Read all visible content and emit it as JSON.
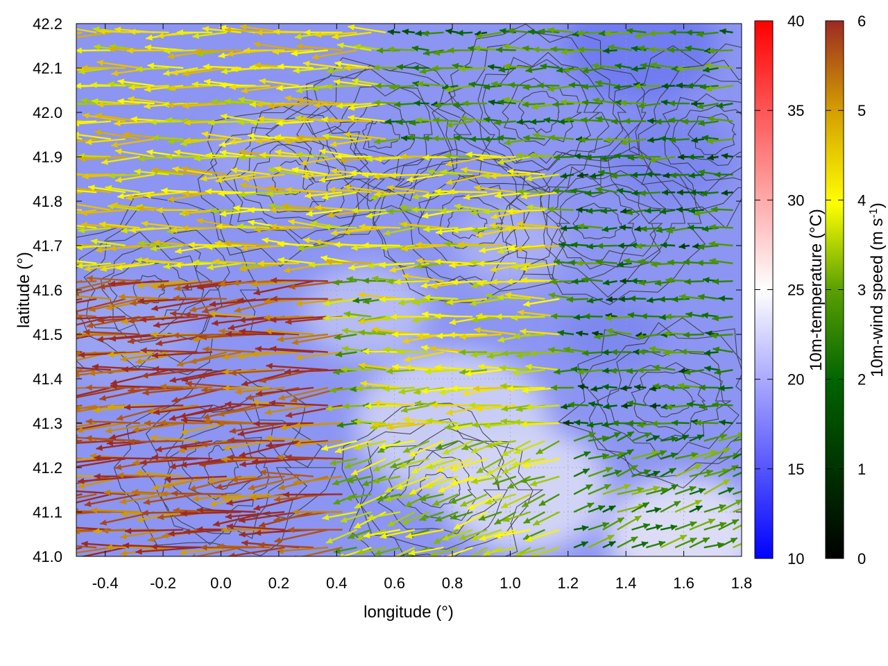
{
  "chart_data": {
    "type": "heatmap",
    "title": "",
    "xlabel": "longitude (°)",
    "ylabel": "latitude (°)",
    "xlim": [
      -0.5,
      1.8
    ],
    "ylim": [
      41.0,
      42.2
    ],
    "xticks": [
      {
        "value": -0.4,
        "label": "-0.4"
      },
      {
        "value": -0.2,
        "label": "-0.2"
      },
      {
        "value": 0.0,
        "label": "0.0"
      },
      {
        "value": 0.2,
        "label": "0.2"
      },
      {
        "value": 0.4,
        "label": "0.4"
      },
      {
        "value": 0.6,
        "label": "0.6"
      },
      {
        "value": 0.8,
        "label": "0.8"
      },
      {
        "value": 1.0,
        "label": "1.0"
      },
      {
        "value": 1.2,
        "label": "1.2"
      },
      {
        "value": 1.4,
        "label": "1.4"
      },
      {
        "value": 1.6,
        "label": "1.6"
      },
      {
        "value": 1.8,
        "label": "1.8"
      }
    ],
    "yticks": [
      {
        "value": 41.0,
        "label": "41.0"
      },
      {
        "value": 41.1,
        "label": "41.1"
      },
      {
        "value": 41.2,
        "label": "41.2"
      },
      {
        "value": 41.3,
        "label": "41.3"
      },
      {
        "value": 41.4,
        "label": "41.4"
      },
      {
        "value": 41.5,
        "label": "41.5"
      },
      {
        "value": 41.6,
        "label": "41.6"
      },
      {
        "value": 41.7,
        "label": "41.7"
      },
      {
        "value": 41.8,
        "label": "41.8"
      },
      {
        "value": 41.9,
        "label": "41.9"
      },
      {
        "value": 42.0,
        "label": "42.0"
      },
      {
        "value": 42.1,
        "label": "42.1"
      },
      {
        "value": 42.2,
        "label": "42.2"
      }
    ],
    "grid": true,
    "temperature_colorbar": {
      "label": "10m-temperature (°C)",
      "range": [
        10,
        40
      ],
      "ticks": [
        {
          "value": 10,
          "label": "10"
        },
        {
          "value": 15,
          "label": "15"
        },
        {
          "value": 20,
          "label": "20"
        },
        {
          "value": 25,
          "label": "25"
        },
        {
          "value": 30,
          "label": "30"
        },
        {
          "value": 35,
          "label": "35"
        },
        {
          "value": 40,
          "label": "40"
        }
      ],
      "colors": [
        "#0000ff",
        "#ffffff",
        "#ff0000"
      ]
    },
    "wind_colorbar": {
      "label_main": "10m-wind speed (m s",
      "label_sup": "-1",
      "label_end": ")",
      "range": [
        0,
        6
      ],
      "ticks": [
        {
          "value": 0,
          "label": "0"
        },
        {
          "value": 1,
          "label": "1"
        },
        {
          "value": 2,
          "label": "2"
        },
        {
          "value": 3,
          "label": "3"
        },
        {
          "value": 4,
          "label": "4"
        },
        {
          "value": 5,
          "label": "5"
        },
        {
          "value": 6,
          "label": "6"
        }
      ],
      "colors": [
        "#000000",
        "#006400",
        "#5aa000",
        "#ffff00",
        "#d4a000",
        "#9c2a22"
      ]
    },
    "temperature_field_approx": {
      "description_range_c": [
        16,
        22
      ],
      "note": "field mostly 16-20 °C, warmer (~21-22 °C) over land in south-east"
    },
    "wind_field_approx": {
      "grid_spacing_deg": [
        0.05,
        0.04
      ],
      "regions": [
        {
          "lon": [
            -0.5,
            0.45
          ],
          "lat": [
            41.0,
            41.65
          ],
          "speed": 5.6,
          "dir_deg": 185
        },
        {
          "lon": [
            -0.5,
            0.6
          ],
          "lat": [
            41.65,
            42.2
          ],
          "speed": 3.8,
          "dir_deg": 180
        },
        {
          "lon": [
            0.6,
            1.2
          ],
          "lat": [
            41.3,
            41.9
          ],
          "speed": 3.5,
          "dir_deg": 182
        },
        {
          "lon": [
            0.6,
            1.8
          ],
          "lat": [
            41.9,
            42.2
          ],
          "speed": 1.8,
          "dir_deg": 180
        },
        {
          "lon": [
            1.2,
            1.8
          ],
          "lat": [
            41.3,
            41.9
          ],
          "speed": 1.6,
          "dir_deg": 180
        },
        {
          "lon": [
            0.45,
            1.2
          ],
          "lat": [
            41.0,
            41.3
          ],
          "speed": 3.0,
          "dir_deg": 200
        },
        {
          "lon": [
            1.2,
            1.8
          ],
          "lat": [
            41.0,
            41.3
          ],
          "speed": 2.0,
          "dir_deg": 20
        }
      ]
    }
  }
}
